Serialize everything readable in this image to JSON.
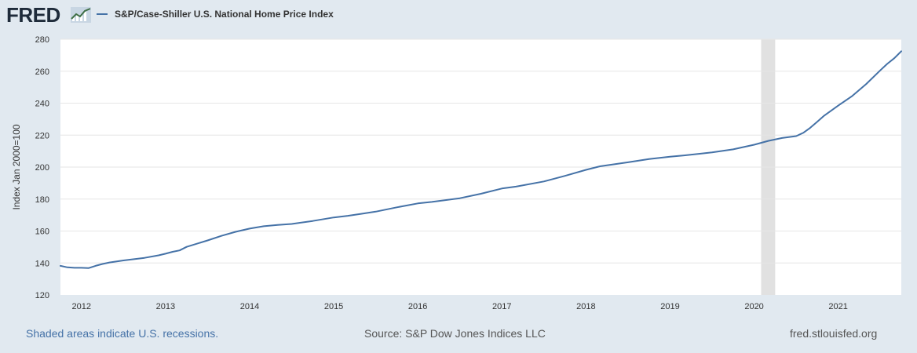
{
  "header": {
    "logo_text": "FRED",
    "logo_icon": "line-chart-icon",
    "series_title": "S&P/Case-Shiller U.S. National Home Price Index",
    "series_color": "#4572a7"
  },
  "footer": {
    "recession_note": "Shaded areas indicate U.S. recessions.",
    "source": "Source: S&P Dow Jones Indices LLC",
    "site": "fred.stlouisfed.org"
  },
  "colors": {
    "background": "#e1e9f0",
    "plot_background": "#ffffff",
    "line": "#4572a7",
    "recession": "#e1e1e1",
    "grid": "#e6e6e6"
  },
  "chart_data": {
    "type": "line",
    "title": "S&P/Case-Shiller U.S. National Home Price Index",
    "xlabel": "",
    "ylabel": "Index Jan 2000=100",
    "xlim": [
      2011.75,
      2021.75
    ],
    "ylim": [
      120,
      280
    ],
    "yticks": [
      120,
      140,
      160,
      180,
      200,
      220,
      240,
      260,
      280
    ],
    "xticks": [
      2012,
      2013,
      2014,
      2015,
      2016,
      2017,
      2018,
      2019,
      2020,
      2021
    ],
    "grid": true,
    "legend": "top-left",
    "recessions": [
      {
        "start": 2020.083,
        "end": 2020.25
      }
    ],
    "series": [
      {
        "name": "S&P/Case-Shiller U.S. National Home Price Index",
        "color": "#4572a7",
        "x": [
          2011.75,
          2011.833,
          2011.917,
          2012.0,
          2012.083,
          2012.167,
          2012.25,
          2012.333,
          2012.5,
          2012.75,
          2012.917,
          2013.0,
          2013.083,
          2013.167,
          2013.25,
          2013.5,
          2013.667,
          2013.833,
          2014.0,
          2014.167,
          2014.333,
          2014.5,
          2014.75,
          2015.0,
          2015.167,
          2015.333,
          2015.5,
          2015.75,
          2016.0,
          2016.167,
          2016.5,
          2016.75,
          2017.0,
          2017.167,
          2017.5,
          2017.75,
          2018.0,
          2018.167,
          2018.5,
          2018.75,
          2019.0,
          2019.167,
          2019.5,
          2019.75,
          2020.0,
          2020.167,
          2020.333,
          2020.5,
          2020.583,
          2020.667,
          2020.75,
          2020.833,
          2021.0,
          2021.167,
          2021.333,
          2021.5,
          2021.583,
          2021.667,
          2021.75
        ],
        "values": [
          138.2,
          137.3,
          137.0,
          137.0,
          136.8,
          138.2,
          139.4,
          140.3,
          141.6,
          143.2,
          144.8,
          145.8,
          147.0,
          147.9,
          150.1,
          154.1,
          157.0,
          159.5,
          161.5,
          163.0,
          163.8,
          164.4,
          166.3,
          168.5,
          169.5,
          170.8,
          172.1,
          174.8,
          177.3,
          178.2,
          180.5,
          183.3,
          186.6,
          187.8,
          191.0,
          194.5,
          198.3,
          200.5,
          203.0,
          205.0,
          206.5,
          207.3,
          209.2,
          211.1,
          214.0,
          216.4,
          218.2,
          219.4,
          221.4,
          224.6,
          228.3,
          232.2,
          238.5,
          244.5,
          252.0,
          260.5,
          264.6,
          268.1,
          272.5
        ]
      }
    ]
  }
}
